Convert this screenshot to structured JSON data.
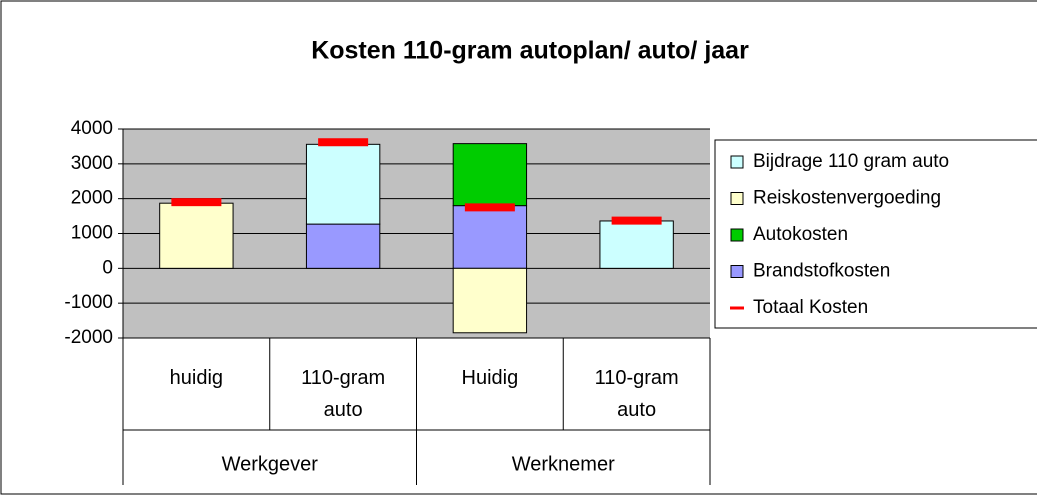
{
  "chart_data": {
    "type": "bar",
    "stacked": true,
    "title": "Kosten 110-gram autoplan/ auto/ jaar",
    "categories": [
      "huidig",
      "110-gram auto",
      "Huidig",
      "110-gram auto"
    ],
    "groups": [
      {
        "name": "Werkgever",
        "span": 2
      },
      {
        "name": "Werknemer",
        "span": 2
      }
    ],
    "series": [
      {
        "name": "Brandstofkosten",
        "color": "#9999ff",
        "values": [
          null,
          1270,
          1800,
          null
        ]
      },
      {
        "name": "Autokosten",
        "color": "#00cc00",
        "values": [
          null,
          null,
          1780,
          null
        ]
      },
      {
        "name": "Reiskostenvergoeding",
        "color": "#ffffcc",
        "values": [
          1870,
          null,
          -1850,
          null
        ]
      },
      {
        "name": "Bijdrage 110 gram auto",
        "color": "#ccffff",
        "values": [
          null,
          2290,
          null,
          1360
        ]
      },
      {
        "name": "Totaal Kosten",
        "color": "#ff0000",
        "type": "marker",
        "values": [
          1900,
          3620,
          1750,
          1370
        ]
      }
    ],
    "legend_order": [
      3,
      2,
      1,
      0,
      4
    ],
    "ylim": [
      -2000,
      4000
    ],
    "yticks": [
      -2000,
      -1000,
      0,
      1000,
      2000,
      3000,
      4000
    ],
    "grid": true,
    "plot_background": "#c0c0c0"
  }
}
